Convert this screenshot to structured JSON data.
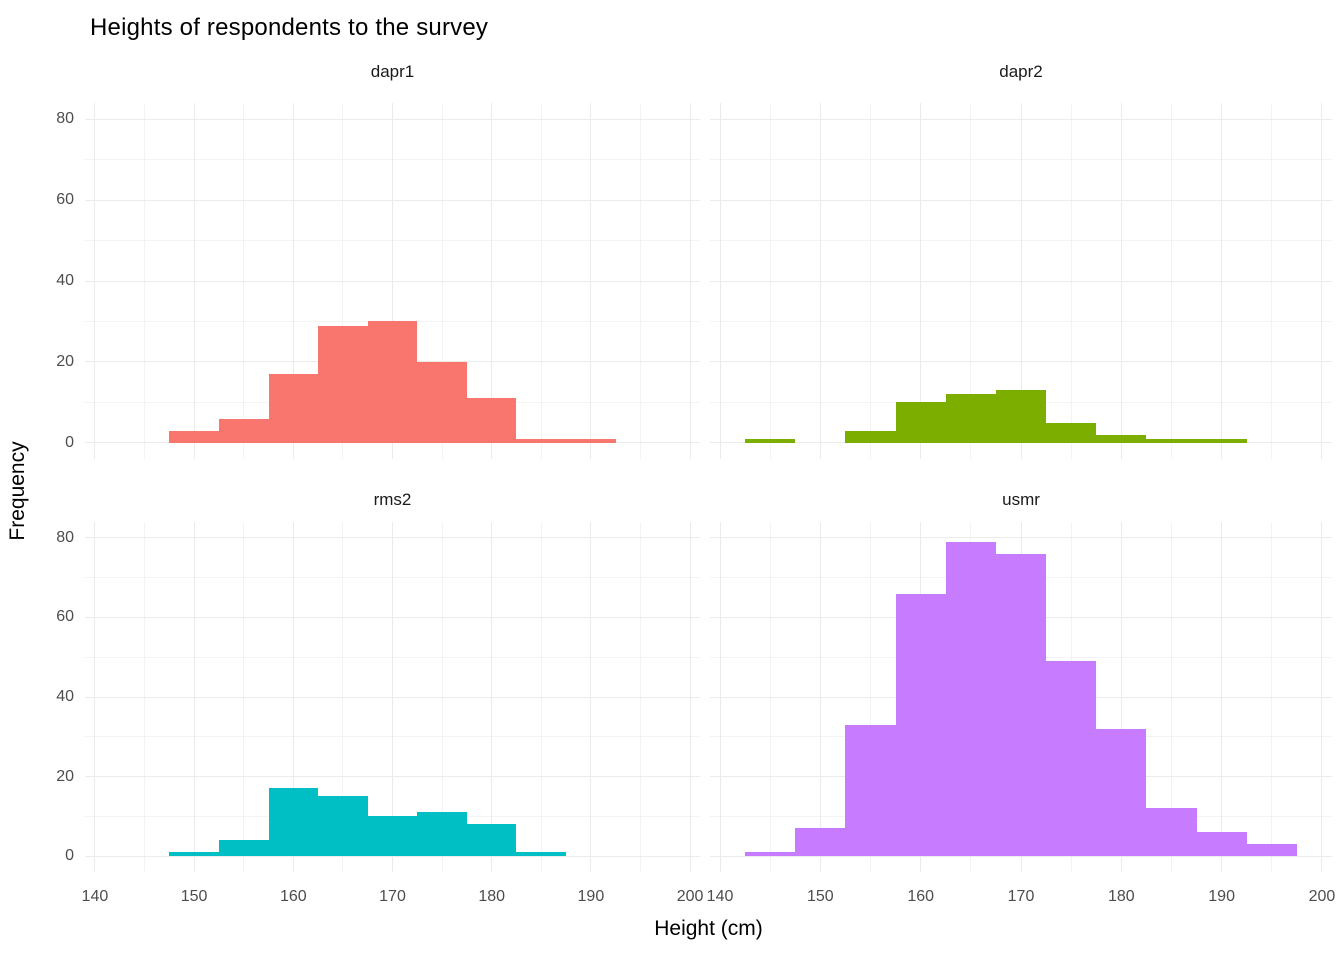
{
  "title": "Heights of respondents to the survey",
  "x_axis_label": "Height (cm)",
  "y_axis_label": "Frequency",
  "colors": {
    "background": "#FFFFFF",
    "grid_major": "#EBEBEB",
    "grid_minor": "#F3F3F3",
    "tick_label": "#4D4D4D",
    "text": "#000000",
    "facet_dapr1": "#F8766D",
    "facet_dapr2": "#7CAE00",
    "facet_rms2": "#00BFC4",
    "facet_usmr": "#C77CFF"
  },
  "chart_data": {
    "type": "bar",
    "subtype": "faceted-histogram",
    "title": "Heights of respondents to the survey",
    "xlabel": "Height (cm)",
    "ylabel": "Frequency",
    "grid": true,
    "legend": false,
    "x_ticks": [
      140,
      150,
      160,
      170,
      180,
      190,
      200
    ],
    "x_minor_ticks": [
      145,
      155,
      165,
      175,
      185,
      195
    ],
    "y_ticks": [
      0,
      20,
      40,
      60,
      80
    ],
    "y_minor_ticks": [
      10,
      30,
      50,
      70
    ],
    "xlim": [
      139,
      201
    ],
    "ylim": [
      -4,
      84
    ],
    "binwidth": 5,
    "facets": [
      {
        "name": "dapr1",
        "color": "#F8766D",
        "bin_start": 147.5,
        "bins": [
          [
            147.5,
            152.5
          ],
          [
            152.5,
            157.5
          ],
          [
            157.5,
            162.5
          ],
          [
            162.5,
            167.5
          ],
          [
            167.5,
            172.5
          ],
          [
            172.5,
            177.5
          ],
          [
            177.5,
            182.5
          ],
          [
            182.5,
            187.5
          ],
          [
            187.5,
            192.5
          ]
        ],
        "counts": [
          3,
          6,
          17,
          29,
          30,
          20,
          11,
          1,
          1
        ]
      },
      {
        "name": "dapr2",
        "color": "#7CAE00",
        "bin_start": 142.5,
        "bins": [
          [
            142.5,
            147.5
          ],
          [
            147.5,
            152.5
          ],
          [
            152.5,
            157.5
          ],
          [
            157.5,
            162.5
          ],
          [
            162.5,
            167.5
          ],
          [
            167.5,
            172.5
          ],
          [
            172.5,
            177.5
          ],
          [
            177.5,
            182.5
          ],
          [
            182.5,
            187.5
          ],
          [
            187.5,
            192.5
          ]
        ],
        "counts": [
          1,
          0,
          3,
          10,
          12,
          13,
          5,
          2,
          1,
          1
        ]
      },
      {
        "name": "rms2",
        "color": "#00BFC4",
        "bin_start": 147.5,
        "bins": [
          [
            147.5,
            152.5
          ],
          [
            152.5,
            157.5
          ],
          [
            157.5,
            162.5
          ],
          [
            162.5,
            167.5
          ],
          [
            167.5,
            172.5
          ],
          [
            172.5,
            177.5
          ],
          [
            177.5,
            182.5
          ],
          [
            182.5,
            187.5
          ]
        ],
        "counts": [
          1,
          4,
          17,
          15,
          10,
          11,
          8,
          1
        ]
      },
      {
        "name": "usmr",
        "color": "#C77CFF",
        "bin_start": 142.5,
        "bins": [
          [
            142.5,
            147.5
          ],
          [
            147.5,
            152.5
          ],
          [
            152.5,
            157.5
          ],
          [
            157.5,
            162.5
          ],
          [
            162.5,
            167.5
          ],
          [
            167.5,
            172.5
          ],
          [
            172.5,
            177.5
          ],
          [
            177.5,
            182.5
          ],
          [
            182.5,
            187.5
          ],
          [
            187.5,
            192.5
          ],
          [
            192.5,
            197.5
          ]
        ],
        "counts": [
          1,
          7,
          33,
          66,
          79,
          76,
          49,
          32,
          12,
          6,
          3
        ]
      }
    ]
  }
}
